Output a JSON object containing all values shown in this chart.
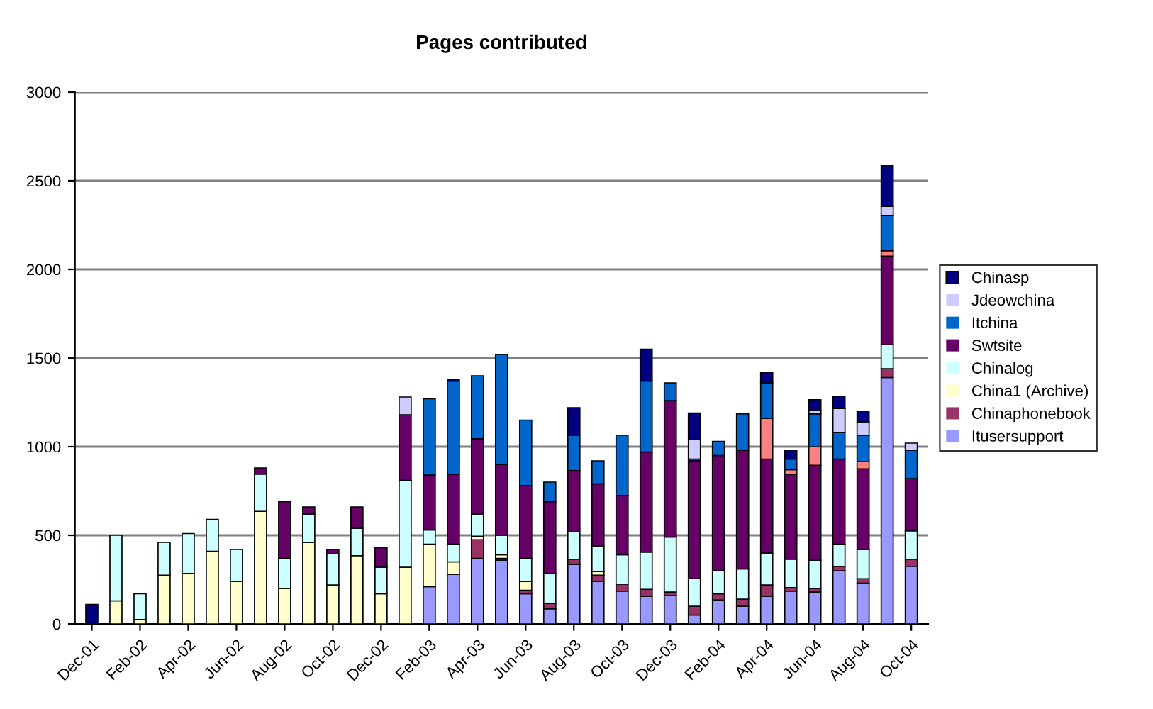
{
  "chart_data": {
    "type": "bar",
    "title": "Pages contributed",
    "stacked": true,
    "grid": "y",
    "legend": "right",
    "categories": [
      "Dec-01",
      null,
      "Feb-02",
      null,
      "Apr-02",
      null,
      "Jun-02",
      null,
      "Aug-02",
      null,
      "Oct-02",
      null,
      "Dec-02",
      null,
      "Feb-03",
      null,
      "Apr-03",
      null,
      "Jun-03",
      null,
      "Aug-03",
      null,
      "Oct-03",
      null,
      "Dec-03",
      null,
      "Feb-04",
      null,
      "Apr-04",
      null,
      "Jun-04",
      null,
      "Aug-04",
      null,
      "Oct-04"
    ],
    "ylim": [
      0,
      3000
    ],
    "yticks": [
      0,
      500,
      1000,
      1500,
      2000,
      2500,
      3000
    ],
    "series": [
      {
        "name": "Itusersupport",
        "color": "#9999ff",
        "values": [
          0,
          0,
          0,
          0,
          0,
          0,
          0,
          0,
          0,
          0,
          0,
          0,
          0,
          0,
          210,
          280,
          370,
          360,
          170,
          85,
          335,
          240,
          185,
          155,
          160,
          50,
          135,
          100,
          155,
          185,
          180,
          300,
          230,
          1390,
          325
        ]
      },
      {
        "name": "Chinaphonebook",
        "color": "#993366",
        "values": [
          0,
          0,
          0,
          0,
          0,
          0,
          0,
          0,
          0,
          0,
          0,
          0,
          0,
          0,
          0,
          0,
          105,
          10,
          20,
          30,
          30,
          35,
          40,
          40,
          20,
          50,
          35,
          40,
          65,
          20,
          20,
          25,
          25,
          50,
          40
        ]
      },
      {
        "name": "China1 (Archive)",
        "color": "#ffffcc",
        "values": [
          0,
          130,
          25,
          275,
          285,
          410,
          240,
          635,
          200,
          460,
          220,
          385,
          170,
          320,
          240,
          70,
          20,
          20,
          50,
          0,
          0,
          20,
          0,
          0,
          0,
          0,
          0,
          0,
          0,
          0,
          0,
          0,
          0,
          0,
          0
        ]
      },
      {
        "name": "Chinalog",
        "color": "#ccffff",
        "values": [
          0,
          370,
          145,
          185,
          225,
          180,
          180,
          210,
          170,
          160,
          175,
          155,
          150,
          490,
          80,
          100,
          125,
          110,
          130,
          170,
          155,
          145,
          165,
          210,
          310,
          155,
          130,
          170,
          180,
          160,
          160,
          125,
          165,
          135,
          160
        ]
      },
      {
        "name": "Swtsite",
        "color": "#660066",
        "values": [
          0,
          0,
          0,
          0,
          0,
          0,
          0,
          35,
          320,
          40,
          25,
          120,
          110,
          370,
          310,
          395,
          425,
          400,
          410,
          405,
          345,
          350,
          335,
          565,
          770,
          665,
          650,
          670,
          530,
          480,
          535,
          480,
          455,
          500,
          295
        ]
      },
      {
        "color": "#ff8080",
        "values": [
          0,
          0,
          0,
          0,
          0,
          0,
          0,
          0,
          0,
          0,
          0,
          0,
          0,
          0,
          0,
          0,
          0,
          0,
          0,
          0,
          0,
          0,
          0,
          0,
          0,
          0,
          0,
          0,
          230,
          25,
          105,
          0,
          40,
          30,
          0
        ]
      },
      {
        "name": "Itchina",
        "color": "#0066cc",
        "values": [
          0,
          0,
          0,
          0,
          0,
          0,
          0,
          0,
          0,
          0,
          0,
          0,
          0,
          0,
          430,
          525,
          355,
          620,
          370,
          110,
          200,
          130,
          340,
          400,
          100,
          10,
          80,
          205,
          200,
          60,
          185,
          150,
          150,
          200,
          160
        ]
      },
      {
        "name": "Jdeowchina",
        "color": "#ccccff",
        "values": [
          0,
          0,
          0,
          0,
          0,
          0,
          0,
          0,
          0,
          0,
          0,
          0,
          0,
          100,
          0,
          0,
          0,
          0,
          0,
          0,
          0,
          0,
          0,
          0,
          0,
          110,
          0,
          0,
          0,
          0,
          20,
          135,
          75,
          50,
          40
        ]
      },
      {
        "name": "Chinasp",
        "color": "#000080",
        "values": [
          110,
          0,
          0,
          0,
          0,
          0,
          0,
          0,
          0,
          0,
          0,
          0,
          0,
          0,
          0,
          10,
          0,
          0,
          0,
          0,
          155,
          0,
          0,
          180,
          0,
          150,
          0,
          0,
          60,
          50,
          60,
          70,
          60,
          230,
          0
        ]
      }
    ]
  }
}
